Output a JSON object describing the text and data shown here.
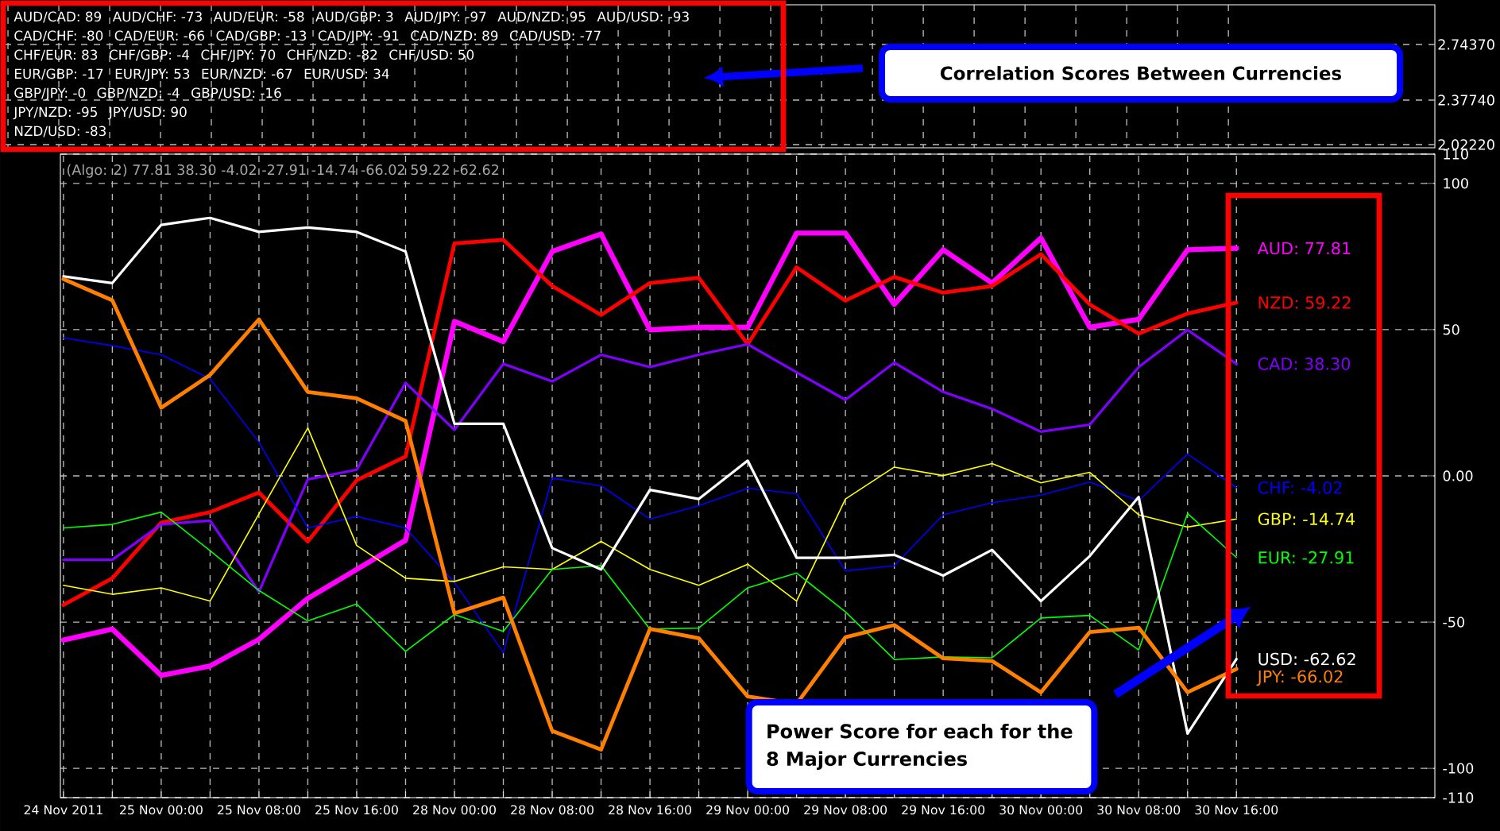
{
  "chart_data": [
    {
      "type": "other",
      "annotations": [
        "AUD/CAD: 89",
        "AUD/CHF: -73",
        "AUD/EUR: -58",
        "AUD/GBP: 3",
        "AUD/JPY: -97",
        "AUD/NZD: 95",
        "AUD/USD: -93",
        "CAD/CHF: -80",
        "CAD/EUR: -66",
        "CAD/GBP: -13",
        "CAD/JPY: -91",
        "CAD/NZD: 89",
        "CAD/USD: -77",
        "CHF/EUR: 83",
        "CHF/GBP: -4",
        "CHF/JPY: 70",
        "CHF/NZD: -82",
        "CHF/USD: 50",
        "EUR/GBP: -17",
        "EUR/JPY: 53",
        "EUR/NZD: -67",
        "EUR/USD: 34",
        "GBP/JPY: -0",
        "GBP/NZD: -4",
        "GBP/USD: -16",
        "JPY/NZD: -95",
        "JPY/USD: 90",
        "NZD/USD: -83",
        "Correlation Scores Between Currencies",
        "2.74370",
        "2.37740",
        "2.02220"
      ]
    },
    {
      "type": "line",
      "title": "(Algo: 2) 77.81 38.30 -4.02 -27.91 -14.74 -66.02 59.22 -62.62",
      "categories": [
        "24 Nov 2011",
        null,
        "25 Nov 00:00",
        null,
        "25 Nov 08:00",
        null,
        "25 Nov 16:00",
        null,
        "28 Nov 00:00",
        null,
        "28 Nov 08:00",
        null,
        "28 Nov 16:00",
        null,
        "29 Nov 00:00",
        null,
        "29 Nov 08:00",
        null,
        "29 Nov 16:00",
        null,
        "30 Nov 00:00",
        null,
        "30 Nov 08:00",
        null,
        "30 Nov 16:00"
      ],
      "series": [
        {
          "name": "AUD: 77.81",
          "color": "#ff00ff",
          "values": [
            -56.1,
            -52.4,
            -68.2,
            -65.0,
            -55.9,
            -41.9,
            -32.0,
            -22.0,
            52.8,
            45.9,
            76.7,
            82.7,
            49.9,
            50.8,
            50.8,
            83.0,
            83.0,
            58.6,
            77.3,
            65.9,
            81.3,
            50.8,
            53.5,
            77.3,
            77.81
          ]
        },
        {
          "name": "NZD: 59.22",
          "color": "#ff0000",
          "values": [
            -44.1,
            -35.0,
            -16.0,
            -12.4,
            -5.7,
            -22.4,
            -1.5,
            6.6,
            79.5,
            80.7,
            64.9,
            55.0,
            65.9,
            67.7,
            45.0,
            71.3,
            59.9,
            68.0,
            62.6,
            64.9,
            75.8,
            58.6,
            48.6,
            55.5,
            59.22
          ]
        },
        {
          "name": "CAD: 38.30",
          "color": "#8000ff",
          "values": [
            -28.7,
            -28.7,
            -16.6,
            -15.3,
            -39.6,
            -1.2,
            2.1,
            31.8,
            15.7,
            38.3,
            32.3,
            41.4,
            37.2,
            41.4,
            45.0,
            35.4,
            26.0,
            38.7,
            28.7,
            22.9,
            15.1,
            17.5,
            37.2,
            49.9,
            38.3
          ]
        },
        {
          "name": "CHF: -4.02",
          "color": "#0000ff",
          "values": [
            47.2,
            44.5,
            41.4,
            33.2,
            11.5,
            -17.8,
            -13.9,
            -17.8,
            -36.5,
            -60.4,
            -0.8,
            -3.4,
            -14.8,
            -10.2,
            -4.3,
            -6.1,
            -32.5,
            -30.7,
            -13.3,
            -9.2,
            -6.6,
            -2.1,
            -8.5,
            7.5,
            -4.02
          ]
        },
        {
          "name": "GBP: -14.74",
          "color": "#ffff00",
          "values": [
            -37.4,
            -40.5,
            -38.3,
            -42.8,
            -13.0,
            16.4,
            -23.8,
            -35.0,
            -36.1,
            -31.1,
            -32.0,
            -22.4,
            -32.0,
            -37.4,
            -30.2,
            -42.8,
            -7.9,
            3.0,
            0.1,
            4.2,
            -2.4,
            1.2,
            -13.3,
            -17.5,
            -14.74
          ]
        },
        {
          "name": "EUR: -27.91",
          "color": "#00ff00",
          "values": [
            -17.8,
            -16.6,
            -12.4,
            -25.6,
            -39.2,
            -49.6,
            -43.8,
            -60.0,
            -47.4,
            -53.2,
            -32.0,
            -30.7,
            -52.4,
            -52.0,
            -38.3,
            -33.2,
            -46.5,
            -62.8,
            -61.9,
            -62.2,
            -48.6,
            -47.7,
            -59.5,
            -12.9,
            -27.91
          ]
        },
        {
          "name": "USD: -62.62",
          "color": "#ffffff",
          "values": [
            68.2,
            65.9,
            85.8,
            88.2,
            83.4,
            84.9,
            83.4,
            76.7,
            17.8,
            17.8,
            -24.7,
            -32.0,
            -4.8,
            -7.9,
            5.2,
            -28.0,
            -28.0,
            -27.0,
            -34.1,
            -25.3,
            -42.8,
            -27.4,
            -7.2,
            -88.1,
            -62.62
          ]
        },
        {
          "name": "JPY: -66.02",
          "color": "#ff8000",
          "values": [
            67.3,
            60.0,
            23.3,
            34.5,
            53.5,
            28.7,
            26.5,
            18.8,
            -47.0,
            -41.6,
            -87.2,
            -93.6,
            -52.3,
            -55.5,
            -75.4,
            -78.0,
            -55.2,
            -51.0,
            -62.4,
            -63.3,
            -74.0,
            -53.4,
            -51.9,
            -74.0,
            -66.02
          ]
        }
      ],
      "ylim": [
        -110,
        110
      ],
      "yticks": [
        110,
        100,
        50,
        {
          "value": 0,
          "label": "0.00"
        },
        -50,
        -100,
        -110
      ],
      "grid": true,
      "annotations": [
        "Power Score for each for the 8 Major Currencies"
      ]
    }
  ]
}
